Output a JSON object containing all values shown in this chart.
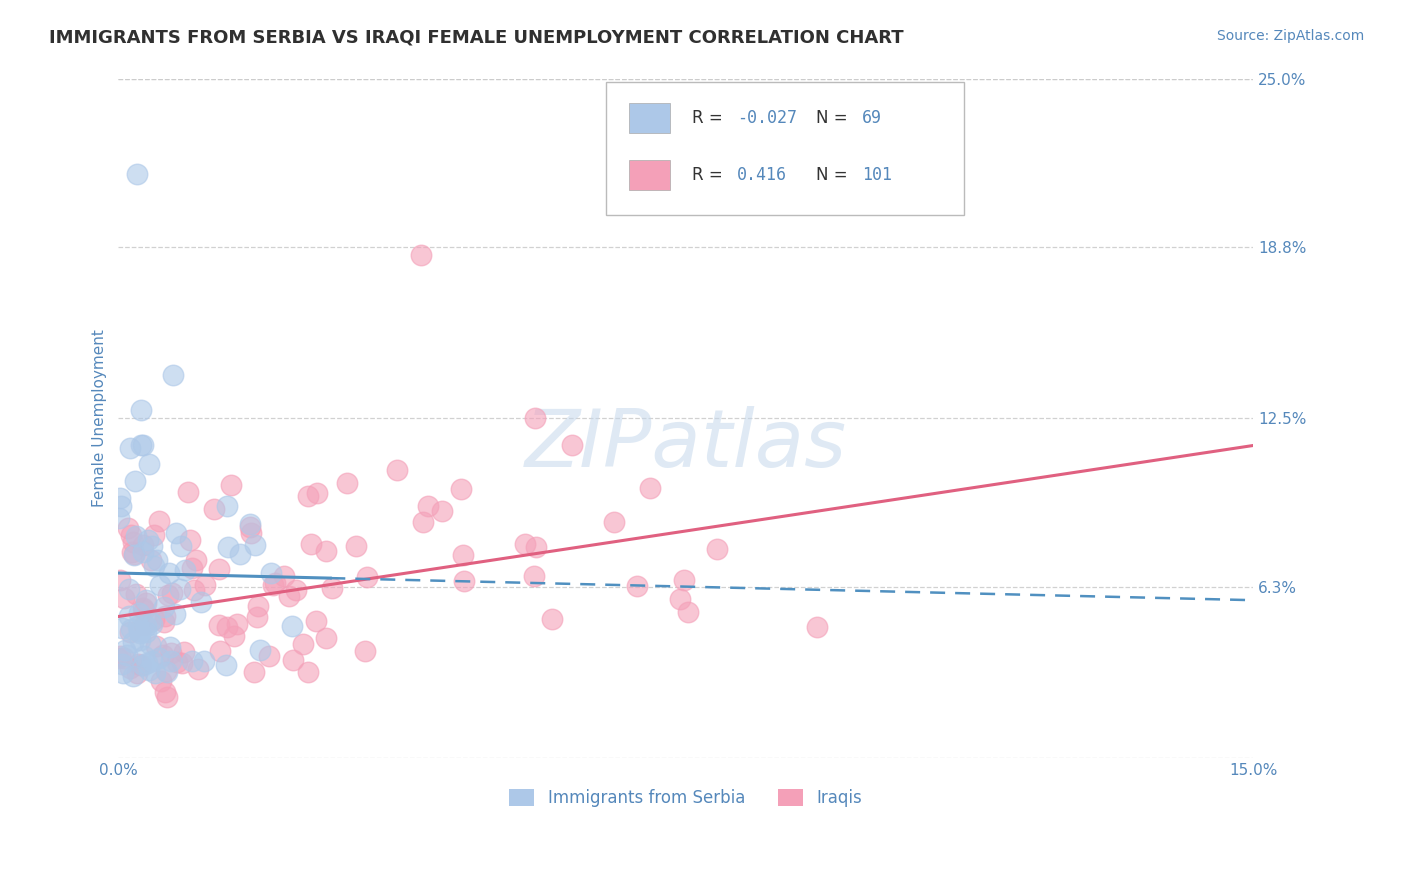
{
  "title": "IMMIGRANTS FROM SERBIA VS IRAQI FEMALE UNEMPLOYMENT CORRELATION CHART",
  "source_text": "Source: ZipAtlas.com",
  "ylabel": "Female Unemployment",
  "xlim": [
    0.0,
    0.15
  ],
  "ylim": [
    0.0,
    0.25
  ],
  "yticks": [
    0.0,
    0.063,
    0.125,
    0.188,
    0.25
  ],
  "ytick_labels": [
    "",
    "6.3%",
    "12.5%",
    "18.8%",
    "25.0%"
  ],
  "xticks": [
    0.0,
    0.05,
    0.1,
    0.15
  ],
  "xtick_labels": [
    "0.0%",
    "",
    "",
    "15.0%"
  ],
  "series": [
    {
      "name": "Immigrants from Serbia",
      "R": -0.027,
      "N": 69,
      "dot_color": "#adc8e8",
      "line_color": "#5090c0",
      "line_style_solid_end": 0.028,
      "trend_x": [
        0.0,
        0.15
      ],
      "trend_y": [
        0.068,
        0.058
      ]
    },
    {
      "name": "Iraqis",
      "R": 0.416,
      "N": 101,
      "dot_color": "#f4a0b8",
      "line_color": "#e06080",
      "line_style": "-",
      "trend_x": [
        0.0,
        0.15
      ],
      "trend_y": [
        0.052,
        0.115
      ]
    }
  ],
  "watermark": "ZIPatlas",
  "watermark_color": "#c5d8ec",
  "bg_color": "#ffffff",
  "title_color": "#303030",
  "axis_color": "#5588bb",
  "grid_color": "#cccccc",
  "title_fontsize": 13,
  "source_fontsize": 10,
  "ylabel_fontsize": 11,
  "tick_fontsize": 11,
  "legend_fontsize": 12,
  "watermark_fontsize": 58
}
